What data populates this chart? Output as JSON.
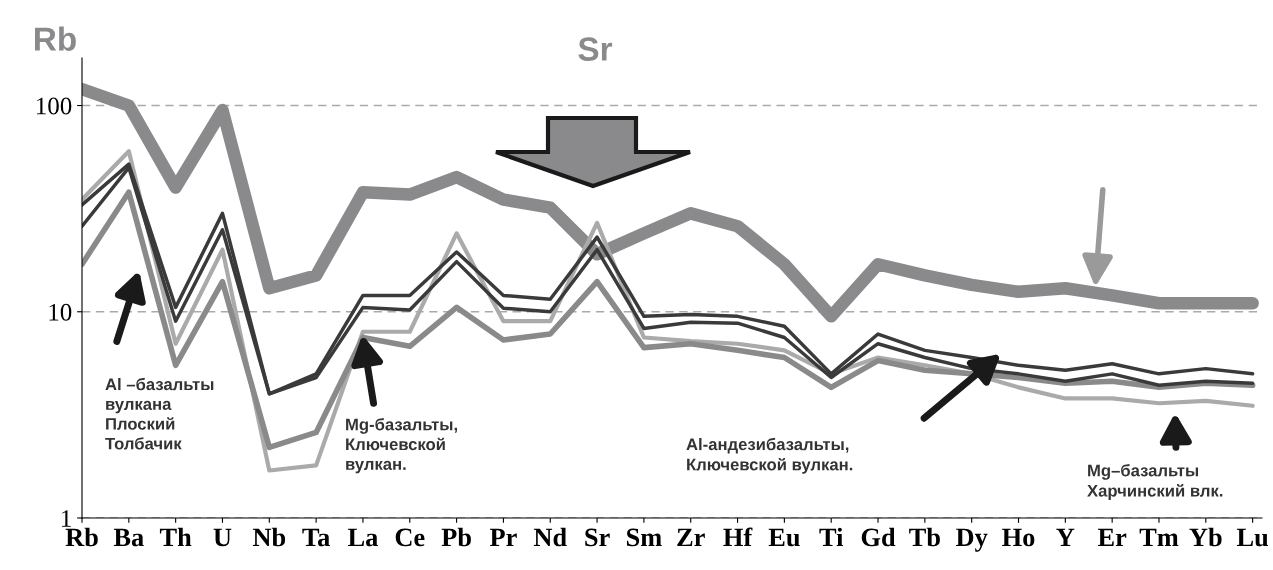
{
  "chart_data": {
    "type": "line",
    "categories": [
      "Rb",
      "Ba",
      "Th",
      "U",
      "Nb",
      "Ta",
      "La",
      "Ce",
      "Pb",
      "Pr",
      "Nd",
      "Sr",
      "Sm",
      "Zr",
      "Hf",
      "Eu",
      "Ti",
      "Gd",
      "Tb",
      "Dy",
      "Ho",
      "Y",
      "Er",
      "Tm",
      "Yb",
      "Lu"
    ],
    "log": true,
    "ylim": [
      1,
      170
    ],
    "yticks": [
      1,
      10,
      100
    ],
    "grid": "y",
    "line_style": "solid",
    "series": [
      {
        "color": "#8a8a8c",
        "values": [
          120,
          100,
          40,
          95,
          13,
          15,
          38,
          37,
          45,
          35,
          32,
          19,
          24,
          30,
          26,
          17,
          9.5,
          17,
          15,
          13.5,
          12.5,
          13,
          12,
          11,
          11,
          11
        ]
      },
      {
        "color": "#aaaaaa",
        "values": [
          35,
          60,
          7,
          20,
          1.7,
          1.8,
          8,
          8,
          24,
          9,
          9,
          27,
          7.5,
          7.2,
          7,
          6.5,
          5,
          6,
          5.5,
          5,
          4.3,
          3.8,
          3.8,
          3.6,
          3.7,
          3.5
        ]
      },
      {
        "color": "#8a8a8c",
        "values": [
          17,
          38,
          5.5,
          14,
          2.2,
          2.6,
          7.5,
          6.8,
          10.5,
          7.3,
          7.8,
          14,
          6.7,
          7,
          6.5,
          6,
          4.3,
          5.8,
          5.2,
          5,
          4.8,
          4.5,
          4.6,
          4.3,
          4.5,
          4.4
        ]
      },
      {
        "color": "#3a3a3a",
        "values": [
          26,
          50,
          9,
          25,
          4,
          4.8,
          10.5,
          10.2,
          17.5,
          10.4,
          10,
          20,
          8.3,
          8.9,
          8.8,
          7.5,
          4.8,
          7,
          6,
          5.3,
          5,
          4.6,
          5,
          4.4,
          4.6,
          4.5
        ]
      },
      {
        "color": "#3a3a3a",
        "values": [
          33,
          52,
          10.5,
          30,
          4,
          5,
          12,
          12,
          19.5,
          12,
          11.5,
          23,
          9.5,
          9.7,
          9.5,
          8.5,
          5,
          7.8,
          6.5,
          6,
          5.5,
          5.2,
          5.6,
          5,
          5.3,
          5
        ]
      }
    ],
    "annotations": [
      "Rb",
      "Sr",
      "Al –базальты\nвулкана\nПлоский\nТолбачик",
      "Mg-базальты,\nКлючевской\nвулкан.",
      "Al-андезибазальты,\nКлючевской вулкан.",
      "Mg–базальты\nХарчинский влк."
    ]
  }
}
